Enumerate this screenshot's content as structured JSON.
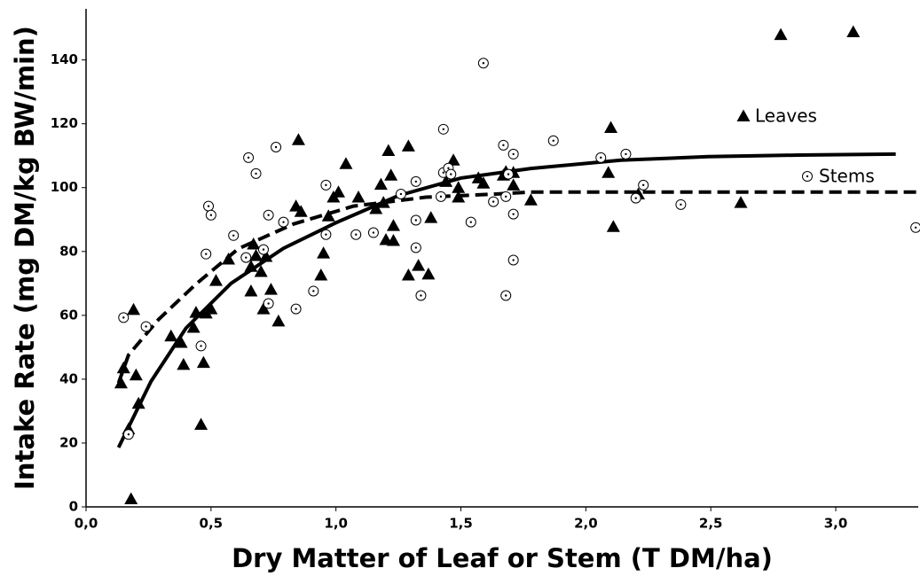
{
  "chart_data": {
    "type": "scatter",
    "xlabel": "Dry Matter of Leaf or Stem (T DM/ha)",
    "ylabel": "Intake Rate (mg DM/kg BW/min)",
    "xlim": [
      0,
      3.33
    ],
    "ylim": [
      0,
      156
    ],
    "xticks": [
      {
        "value": 0,
        "label": "0,0"
      },
      {
        "value": 0.5,
        "label": "0,5"
      },
      {
        "value": 1,
        "label": "1,0"
      },
      {
        "value": 1.5,
        "label": "1,5"
      },
      {
        "value": 2,
        "label": "2,0"
      },
      {
        "value": 2.5,
        "label": "2,5"
      },
      {
        "value": 3,
        "label": "3,0"
      }
    ],
    "yticks": [
      0,
      20,
      40,
      60,
      80,
      100,
      120,
      140
    ],
    "grid": false,
    "series": [
      {
        "name": "Leaves",
        "color": "#000000",
        "marker": "triangle",
        "x": [
          0.14,
          0.15,
          0.17,
          0.18,
          0.19,
          0.2,
          0.21,
          0.34,
          0.38,
          0.39,
          0.43,
          0.44,
          0.46,
          0.47,
          0.48,
          0.5,
          0.52,
          0.57,
          0.66,
          0.66,
          0.67,
          0.68,
          0.7,
          0.71,
          0.72,
          0.74,
          0.77,
          0.85,
          0.84,
          0.86,
          0.94,
          0.95,
          0.97,
          0.99,
          1.01,
          1.04,
          1.09,
          1.16,
          1.18,
          1.19,
          1.2,
          1.21,
          1.22,
          1.23,
          1.23,
          1.29,
          1.29,
          1.33,
          1.37,
          1.38,
          1.44,
          1.47,
          1.49,
          1.49,
          1.57,
          1.59,
          1.67,
          1.68,
          1.71,
          1.71,
          1.78,
          2.09,
          2.1,
          2.11,
          2.21,
          2.62,
          2.78,
          3.07
        ],
        "values": [
          38.8,
          43.5,
          24.4,
          2.5,
          61.8,
          41.3,
          32.4,
          53.5,
          51.5,
          44.6,
          56.2,
          60.9,
          25.8,
          45.2,
          60.7,
          62,
          70.9,
          77.6,
          67.6,
          75.3,
          82.3,
          78.7,
          73.7,
          62,
          78.4,
          68.1,
          58.2,
          115,
          94.2,
          92.5,
          72.6,
          79.5,
          91.1,
          97,
          98.6,
          107.5,
          97,
          93.4,
          101,
          95.3,
          83.7,
          111.6,
          103.9,
          83.4,
          88.1,
          72.6,
          113,
          75.6,
          72.9,
          90.6,
          101.9,
          108.6,
          100,
          97,
          103,
          101.4,
          103.9,
          105,
          100.8,
          104.7,
          96.1,
          104.7,
          118.8,
          87.8,
          98,
          95.3,
          147.9,
          148.8
        ],
        "fit": {
          "dashed": false,
          "x": [
            0.13,
            0.26,
            0.4,
            0.58,
            0.79,
            1.0,
            1.25,
            1.5,
            1.78,
            2.14,
            2.49,
            2.85,
            3.24
          ],
          "values": [
            18.6,
            39.3,
            56,
            70,
            81,
            89,
            97.5,
            103,
            106,
            108.6,
            109.7,
            110.2,
            110.5
          ]
        }
      },
      {
        "name": "Stems",
        "color": "#000000",
        "marker": "circle",
        "x": [
          0.15,
          0.17,
          0.24,
          0.46,
          0.48,
          0.49,
          0.5,
          0.59,
          0.65,
          0.64,
          0.68,
          0.71,
          0.73,
          0.76,
          0.73,
          0.79,
          0.84,
          0.91,
          0.96,
          0.96,
          1.08,
          1.15,
          1.26,
          1.32,
          1.32,
          1.32,
          1.34,
          1.43,
          1.43,
          1.45,
          1.46,
          1.42,
          1.54,
          1.59,
          1.63,
          1.67,
          1.68,
          1.68,
          1.69,
          1.71,
          1.71,
          1.71,
          1.87,
          2.06,
          2.16,
          2.2,
          2.23,
          2.38,
          3.32
        ],
        "values": [
          59.3,
          22.7,
          56.5,
          50.4,
          79.2,
          94.2,
          91.4,
          85,
          109.4,
          78.1,
          104.4,
          80.6,
          91.4,
          112.7,
          63.7,
          89.2,
          62,
          67.6,
          85.3,
          100.8,
          85.3,
          85.9,
          98,
          101.9,
          89.8,
          81.2,
          66.2,
          118.3,
          104.7,
          106.1,
          104.2,
          97.2,
          89.2,
          139,
          95.6,
          113.3,
          66.2,
          97.2,
          104.2,
          110.5,
          77.3,
          91.7,
          114.7,
          109.4,
          110.5,
          96.7,
          100.8,
          94.7,
          87.5
        ],
        "fit": {
          "dashed": true,
          "x": [
            0.13,
            0.17,
            0.29,
            0.44,
            0.61,
            0.83,
            1.07,
            1.36,
            1.64,
            1.78,
            3.33
          ],
          "values": [
            38.8,
            47.6,
            58.7,
            69.8,
            80.9,
            88.6,
            94.2,
            97,
            98,
            98.6,
            98.6
          ]
        }
      }
    ]
  }
}
